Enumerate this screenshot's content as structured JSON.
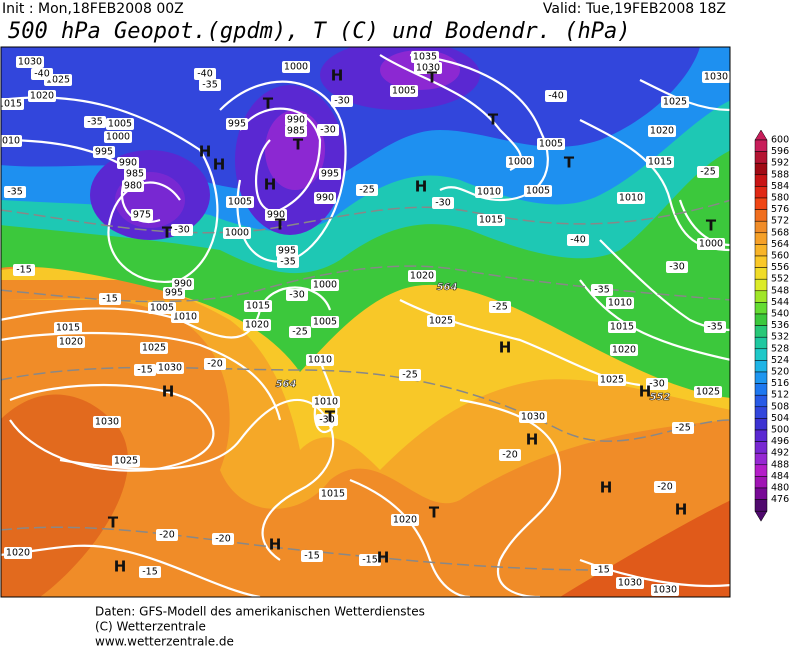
{
  "header": {
    "init": "Init : Mon,18FEB2008 00Z",
    "valid": "Valid: Tue,19FEB2008 18Z",
    "title": "500 hPa Geopot.(gpdm), T (C) und Bodendr. (hPa)"
  },
  "map": {
    "labels": [
      "1030",
      "1025",
      "1020",
      "1015",
      "1010",
      "-40",
      "-35",
      "1005",
      "1000",
      "995",
      "990",
      "985",
      "980",
      "975",
      "-35",
      "-30",
      "995",
      "990",
      "985",
      "1000",
      "1005",
      "-30",
      "995",
      "990",
      "1005",
      "1000",
      "990",
      "995",
      "-35",
      "1000",
      "1005",
      "1010",
      "-30",
      "-25",
      "1015",
      "1020",
      "1010",
      "1005",
      "990",
      "995",
      "-15",
      "-15",
      "1015",
      "1020",
      "1025",
      "1030",
      "-20",
      "-15",
      "1030",
      "1025",
      "-20",
      "1020",
      "-20",
      "-15",
      "-15",
      "-15",
      "1015",
      "1020",
      "1010",
      "-30",
      "-25",
      "1030",
      "-20",
      "1025",
      "-30",
      "1025",
      "-25",
      "-20",
      "-15",
      "1030",
      "1030",
      "1035",
      "1030",
      "1000",
      "1005",
      "1005",
      "-40",
      "-40",
      "1010",
      "1015",
      "1020",
      "1025",
      "1030",
      "1015",
      "1010",
      "-25",
      "1000",
      "-30",
      "-35",
      "1010",
      "1015",
      "1020",
      "-35",
      "1020",
      "1025",
      "-25",
      "-25",
      "-30",
      "-40",
      "-35",
      "-30"
    ],
    "centers": [
      "H",
      "H",
      "H",
      "H",
      "H",
      "H",
      "H",
      "H",
      "H",
      "H",
      "H",
      "H",
      "H",
      "H",
      "T",
      "T",
      "T",
      "T",
      "T",
      "T",
      "T",
      "T",
      "T",
      "T",
      "T"
    ],
    "contour_labels": [
      "564",
      "564",
      "552"
    ]
  },
  "colorbar": {
    "values": [
      600,
      596,
      592,
      588,
      584,
      580,
      576,
      572,
      568,
      564,
      560,
      556,
      552,
      548,
      544,
      540,
      536,
      532,
      528,
      524,
      520,
      516,
      512,
      508,
      504,
      500,
      496,
      492,
      488,
      484,
      480,
      476
    ],
    "colors": [
      "#c81e5a",
      "#b41432",
      "#a00a14",
      "#c81414",
      "#e02814",
      "#f04614",
      "#f06e1e",
      "#f08c28",
      "#f5a028",
      "#f8b428",
      "#fac828",
      "#f0dc28",
      "#dceb28",
      "#a0e628",
      "#64dc32",
      "#3cc83c",
      "#28c878",
      "#1ec8a0",
      "#1ec8c8",
      "#1eb4e6",
      "#1e96f0",
      "#1e78f0",
      "#285ae6",
      "#3246dc",
      "#3c32d2",
      "#5a28d2",
      "#7828d2",
      "#9628d2",
      "#b41ec8",
      "#a014b4",
      "#780a96",
      "#500a6e"
    ]
  },
  "footer": {
    "lines": [
      "Daten: GFS-Modell des amerikanischen Wetterdienstes",
      "(C) Wetterzentrale",
      "www.wetterzentrale.de"
    ]
  }
}
